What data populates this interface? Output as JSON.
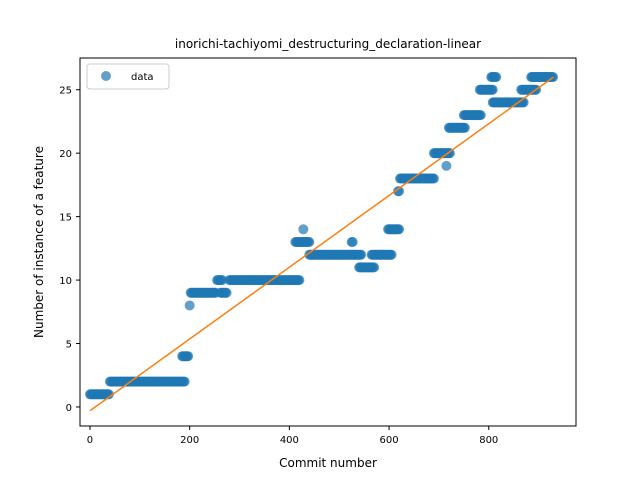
{
  "chart_data": {
    "type": "scatter",
    "title": "inorichi-tachiyomi_destructuring_declaration-linear",
    "xlabel": "Commit number",
    "ylabel": "Number of instance of a feature",
    "xlim": [
      -20,
      975
    ],
    "ylim": [
      -1.5,
      27.5
    ],
    "xticks": [
      0,
      200,
      400,
      600,
      800
    ],
    "yticks": [
      0,
      5,
      10,
      15,
      20,
      25
    ],
    "grid": false,
    "legend_position": "upper-left",
    "colors": {
      "data": "#1f77b4",
      "fit": "#ff7f0e"
    },
    "series": [
      {
        "name": "data",
        "kind": "scatter",
        "segments": [
          {
            "x_start": 0,
            "x_end": 38,
            "y": 1
          },
          {
            "x_start": 40,
            "x_end": 190,
            "y": 2
          },
          {
            "x_start": 185,
            "x_end": 198,
            "y": 4
          },
          {
            "x_start": 200,
            "x_end": 200,
            "y": 8
          },
          {
            "x_start": 202,
            "x_end": 252,
            "y": 9
          },
          {
            "x_start": 255,
            "x_end": 265,
            "y": 10
          },
          {
            "x_start": 262,
            "x_end": 275,
            "y": 9
          },
          {
            "x_start": 280,
            "x_end": 420,
            "y": 10
          },
          {
            "x_start": 412,
            "x_end": 440,
            "y": 13
          },
          {
            "x_start": 428,
            "x_end": 428,
            "y": 14
          },
          {
            "x_start": 440,
            "x_end": 545,
            "y": 12
          },
          {
            "x_start": 525,
            "x_end": 528,
            "y": 13
          },
          {
            "x_start": 540,
            "x_end": 570,
            "y": 11
          },
          {
            "x_start": 565,
            "x_end": 605,
            "y": 12
          },
          {
            "x_start": 598,
            "x_end": 620,
            "y": 14
          },
          {
            "x_start": 618,
            "x_end": 620,
            "y": 17
          },
          {
            "x_start": 622,
            "x_end": 690,
            "y": 18
          },
          {
            "x_start": 690,
            "x_end": 722,
            "y": 20
          },
          {
            "x_start": 715,
            "x_end": 715,
            "y": 19
          },
          {
            "x_start": 720,
            "x_end": 752,
            "y": 22
          },
          {
            "x_start": 750,
            "x_end": 785,
            "y": 23
          },
          {
            "x_start": 782,
            "x_end": 808,
            "y": 25
          },
          {
            "x_start": 805,
            "x_end": 815,
            "y": 26
          },
          {
            "x_start": 808,
            "x_end": 870,
            "y": 24
          },
          {
            "x_start": 865,
            "x_end": 895,
            "y": 25
          },
          {
            "x_start": 885,
            "x_end": 930,
            "y": 26
          }
        ]
      },
      {
        "kind": "line",
        "x": [
          0,
          930
        ],
        "y": [
          -0.3,
          26.0
        ]
      }
    ]
  }
}
